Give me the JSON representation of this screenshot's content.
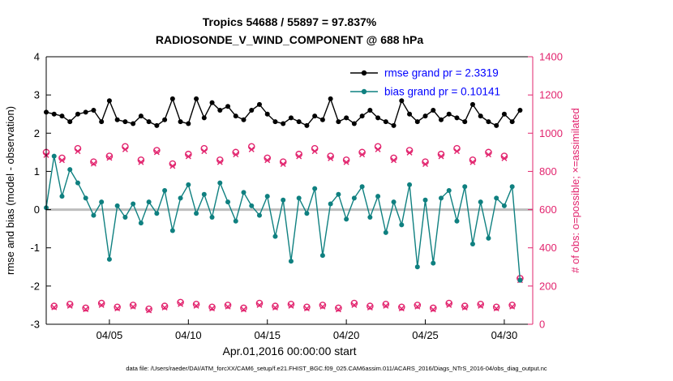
{
  "header": {
    "title_line1": "Tropics 54688 / 55897 = 97.837%",
    "title_line2": "RADIOSONDE_V_WIND_COMPONENT @ 688 hPa"
  },
  "legend": {
    "text_color": "#0000ff",
    "items": [
      {
        "label": "rmse grand pr = 2.3319",
        "color": "#000000"
      },
      {
        "label": "bias grand pr = 0.10141",
        "color": "#0f8080"
      }
    ]
  },
  "caption": "data file: /Users/raeder/DAI/ATM_forcXX/CAM6_setup/f.e21.FHIST_BGC.f09_025.CAM6assim.011/ACARS_2016/Diags_NTrS_2016-04/obs_diag_output.nc",
  "chart_data": {
    "type": "line",
    "title": "Tropics 54688 / 55897 = 97.837%",
    "subtitle": "RADIOSONDE_V_WIND_COMPONENT @ 688 hPa",
    "xlabel": "Apr.01,2016 00:00:00 start",
    "ylabel_left": "rmse and bias (model - observation)",
    "ylabel_right": "# of obs: o=possible; ×=assimilated",
    "grid": false,
    "legend_position": "top-right-inside",
    "xlim": [
      1,
      31.8
    ],
    "ylim_left": [
      -3,
      4
    ],
    "ylim_right": [
      0,
      1400
    ],
    "x_ticks": [
      {
        "x": 5,
        "label": "04/05"
      },
      {
        "x": 10,
        "label": "04/10"
      },
      {
        "x": 15,
        "label": "04/15"
      },
      {
        "x": 20,
        "label": "04/20"
      },
      {
        "x": 25,
        "label": "04/25"
      },
      {
        "x": 30,
        "label": "04/30"
      }
    ],
    "y_ticks_left": [
      -3,
      -2,
      -1,
      0,
      1,
      2,
      3,
      4
    ],
    "y_ticks_right": [
      0,
      200,
      400,
      600,
      800,
      1000,
      1200,
      1400
    ],
    "zero_line": {
      "value": 0,
      "color": "#bdbdbd",
      "width": 3
    },
    "axis_colors": {
      "left": "#000000",
      "right": "#e2246e",
      "x": "#000000"
    },
    "x": [
      1,
      1.5,
      2,
      2.5,
      3,
      3.5,
      4,
      4.5,
      5,
      5.5,
      6,
      6.5,
      7,
      7.5,
      8,
      8.5,
      9,
      9.5,
      10,
      10.5,
      11,
      11.5,
      12,
      12.5,
      13,
      13.5,
      14,
      14.5,
      15,
      15.5,
      16,
      16.5,
      17,
      17.5,
      18,
      18.5,
      19,
      19.5,
      20,
      20.5,
      21,
      21.5,
      22,
      22.5,
      23,
      23.5,
      24,
      24.5,
      25,
      25.5,
      26,
      26.5,
      27,
      27.5,
      28,
      28.5,
      29,
      29.5,
      30,
      30.5,
      31
    ],
    "series": [
      {
        "name": "possible_obs",
        "axis": "right",
        "color": "#e2246e",
        "marker": "circle",
        "line": false,
        "values": [
          900,
          95,
          870,
          105,
          920,
          85,
          850,
          110,
          880,
          90,
          930,
          100,
          860,
          80,
          910,
          95,
          840,
          115,
          890,
          105,
          920,
          90,
          860,
          100,
          900,
          85,
          930,
          110,
          870,
          95,
          850,
          105,
          890,
          90,
          920,
          100,
          880,
          85,
          860,
          110,
          900,
          95,
          930,
          105,
          870,
          90,
          910,
          100,
          850,
          85,
          890,
          110,
          920,
          95,
          860,
          105,
          900,
          90,
          880,
          100,
          240
        ]
      },
      {
        "name": "assimilated_obs",
        "axis": "right",
        "color": "#e2246e",
        "marker": "x",
        "line": false,
        "values": [
          885,
          88,
          858,
          96,
          905,
          78,
          840,
          100,
          870,
          82,
          915,
          92,
          848,
          72,
          900,
          87,
          828,
          105,
          878,
          96,
          905,
          82,
          848,
          92,
          888,
          77,
          915,
          100,
          858,
          87,
          838,
          96,
          878,
          82,
          905,
          92,
          868,
          77,
          848,
          100,
          888,
          87,
          915,
          96,
          858,
          82,
          898,
          92,
          838,
          77,
          878,
          100,
          905,
          87,
          848,
          96,
          888,
          82,
          868,
          92,
          230
        ]
      },
      {
        "name": "bias",
        "axis": "left",
        "color": "#0f8080",
        "marker": "filled-circle",
        "line": true,
        "values": [
          0.05,
          1.4,
          0.35,
          1.05,
          0.7,
          0.3,
          -0.15,
          0.2,
          -1.3,
          0.1,
          -0.2,
          0.15,
          -0.35,
          0.2,
          -0.1,
          0.5,
          -0.55,
          0.3,
          0.65,
          -0.1,
          0.4,
          -0.2,
          0.7,
          0.2,
          -0.3,
          0.45,
          0.1,
          -0.15,
          0.35,
          -0.7,
          0.25,
          -1.35,
          0.3,
          -0.1,
          0.55,
          -1.2,
          0.15,
          0.4,
          -0.25,
          0.3,
          0.6,
          -0.2,
          0.35,
          -0.6,
          0.2,
          -0.4,
          0.65,
          -1.5,
          0.25,
          -1.4,
          0.3,
          0.5,
          -0.3,
          0.6,
          -0.9,
          0.2,
          -0.75,
          0.3,
          0.1,
          0.6,
          -1.85
        ]
      },
      {
        "name": "rmse",
        "axis": "left",
        "color": "#000000",
        "marker": "filled-circle",
        "line": true,
        "values": [
          2.55,
          2.5,
          2.45,
          2.3,
          2.5,
          2.55,
          2.6,
          2.3,
          2.85,
          2.35,
          2.3,
          2.25,
          2.45,
          2.3,
          2.2,
          2.35,
          2.9,
          2.3,
          2.25,
          2.9,
          2.4,
          2.8,
          2.6,
          2.7,
          2.45,
          2.35,
          2.6,
          2.75,
          2.5,
          2.3,
          2.25,
          2.4,
          2.3,
          2.2,
          2.45,
          2.35,
          2.9,
          2.3,
          2.4,
          2.25,
          2.45,
          2.6,
          2.4,
          2.3,
          2.2,
          2.85,
          2.5,
          2.3,
          2.45,
          2.6,
          2.35,
          2.5,
          2.4,
          2.3,
          2.75,
          2.45,
          2.3,
          2.2,
          2.5,
          2.3,
          2.6
        ]
      }
    ],
    "stats": {
      "rmse_grand_mean": 2.3319,
      "bias_grand_mean": 0.10141,
      "possible_total": 55897,
      "assimilated_total": 54688,
      "assimilated_pct": 97.837
    }
  }
}
